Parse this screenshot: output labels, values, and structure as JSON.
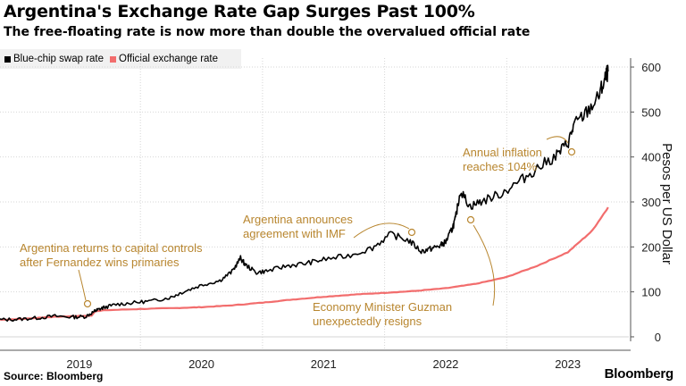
{
  "title": "Argentina's Exchange Rate Gap Surges Past 100%",
  "subtitle": "The free-floating rate is now more than double the overvalued official rate",
  "legend": [
    {
      "label": "Blue-chip swap rate",
      "color": "#000000"
    },
    {
      "label": "Official exchange rate",
      "color": "#f26d6d"
    }
  ],
  "source": "Source: Bloomberg",
  "brand": "Bloomberg",
  "colors": {
    "blue_chip": "#000000",
    "official": "#f26d6d",
    "annotation": "#b8862f",
    "grid": "#d6d6d6"
  },
  "chart_data": {
    "type": "line",
    "title": "Argentina's Exchange Rate Gap Surges Past 100%",
    "xlabel": "",
    "ylabel": "Pesos per US Dollar",
    "xlim": [
      2018.35,
      2023.5
    ],
    "ylim": [
      -10,
      610
    ],
    "yticks": [
      0,
      100,
      200,
      300,
      400,
      500,
      600
    ],
    "xticks": [
      {
        "value": 2019,
        "label": "2019"
      },
      {
        "value": 2020,
        "label": "2020"
      },
      {
        "value": 2021,
        "label": "2021"
      },
      {
        "value": 2022,
        "label": "2022"
      },
      {
        "value": 2023,
        "label": "2023"
      }
    ],
    "series": [
      {
        "name": "Blue-chip swap rate",
        "color": "#000000",
        "x": [
          2018.35,
          2018.5,
          2018.65,
          2018.8,
          2018.95,
          2019.05,
          2019.12,
          2019.15,
          2019.2,
          2019.3,
          2019.45,
          2019.6,
          2019.75,
          2019.85,
          2020.0,
          2020.15,
          2020.25,
          2020.32,
          2020.36,
          2020.45,
          2020.55,
          2020.7,
          2020.85,
          2021.0,
          2021.2,
          2021.4,
          2021.55,
          2021.7,
          2021.8,
          2021.88,
          2021.95,
          2022.0,
          2022.05,
          2022.08,
          2022.12,
          2022.2,
          2022.3,
          2022.45,
          2022.6,
          2022.75,
          2022.9,
          2023.0,
          2023.05,
          2023.15,
          2023.25,
          2023.3,
          2023.33
        ],
        "values": [
          38,
          39,
          42,
          46,
          44,
          45,
          56,
          60,
          65,
          72,
          76,
          80,
          88,
          100,
          115,
          125,
          145,
          175,
          160,
          143,
          147,
          158,
          163,
          172,
          180,
          198,
          228,
          214,
          190,
          196,
          202,
          211,
          238,
          262,
          325,
          290,
          302,
          318,
          345,
          375,
          402,
          430,
          470,
          498,
          532,
          570,
          590
        ]
      },
      {
        "name": "Official exchange rate",
        "color": "#f26d6d",
        "x": [
          2018.35,
          2018.55,
          2018.75,
          2018.95,
          2019.1,
          2019.13,
          2019.2,
          2019.5,
          2019.8,
          2020.0,
          2020.25,
          2020.5,
          2020.75,
          2021.0,
          2021.25,
          2021.5,
          2021.75,
          2022.0,
          2022.25,
          2022.5,
          2022.75,
          2023.0,
          2023.2,
          2023.33
        ],
        "values": [
          38,
          40,
          44,
          46,
          47,
          57,
          59,
          62,
          64,
          66,
          70,
          76,
          83,
          89,
          94,
          98,
          102,
          108,
          118,
          133,
          158,
          188,
          236,
          288
        ]
      }
    ],
    "annotations": [
      {
        "lines": [
          "Argentina returns to capital controls",
          "after Fernandez wins primaries"
        ]
      },
      {
        "lines": [
          "Argentina announces",
          "agreement with IMF"
        ]
      },
      {
        "lines": [
          "Annual inflation",
          "reaches 104%"
        ]
      },
      {
        "lines": [
          "Economy Minister Guzman",
          "unexpectedly resigns"
        ]
      }
    ]
  }
}
